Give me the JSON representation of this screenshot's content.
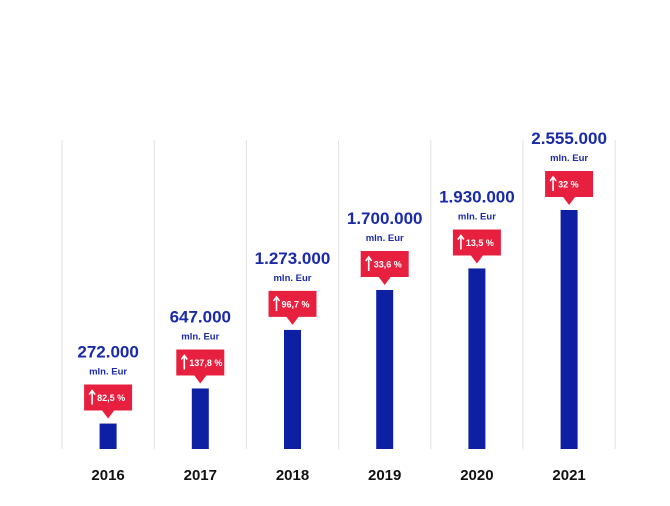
{
  "chart_data": {
    "type": "bar",
    "categories": [
      "2016",
      "2017",
      "2018",
      "2019",
      "2020",
      "2021"
    ],
    "values": [
      272000,
      647000,
      1273000,
      1700000,
      1930000,
      2555000
    ],
    "value_labels": [
      "272.000",
      "647.000",
      "1.273.000",
      "1.700.000",
      "1.930.000",
      "2.555.000"
    ],
    "unit_label": "mln. Eur",
    "growth_labels": [
      "82,5 %",
      "137,8 %",
      "96,7 %",
      "33,6 %",
      "13,5 %",
      "32 %"
    ],
    "title": "",
    "xlabel": "",
    "ylabel": "",
    "ylim": [
      0,
      2555000
    ],
    "grid": "vertical separators",
    "legend": "none"
  },
  "colors": {
    "bar": "#0d1fa3",
    "value_text": "#1a2aa8",
    "badge": "#e8203f",
    "badge_text": "#ffffff",
    "year_text": "#111111",
    "separator": "#e2e2e2"
  }
}
